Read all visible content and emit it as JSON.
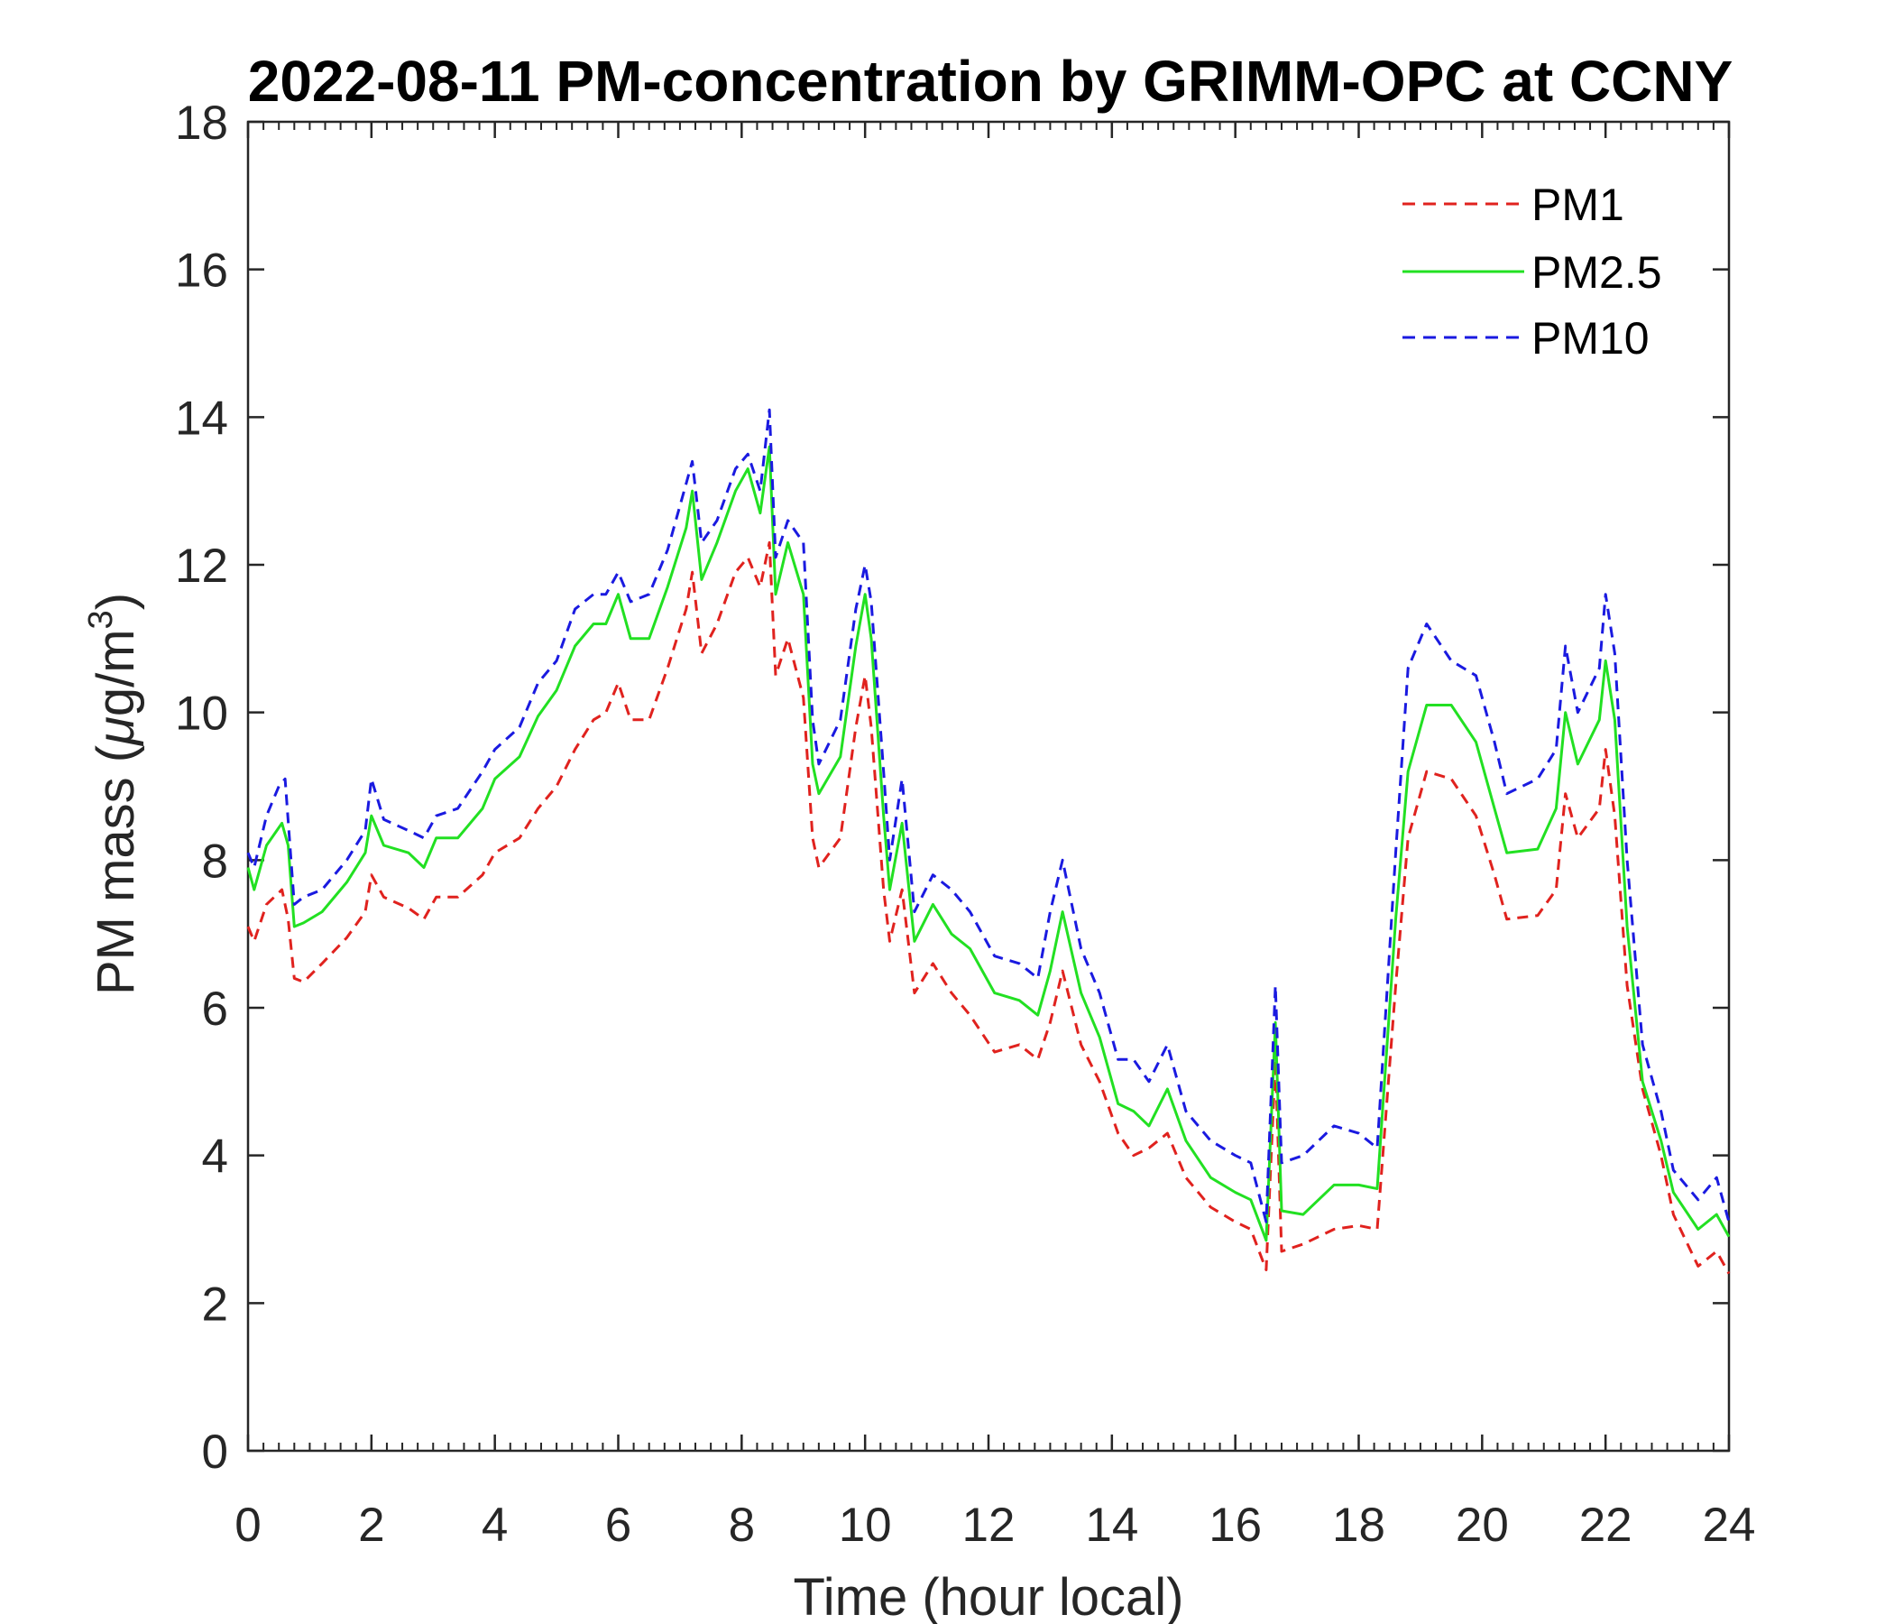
{
  "chart_data": {
    "type": "line",
    "title": "2022-08-11 PM-concentration by GRIMM-OPC at CCNY",
    "xlabel": "Time (hour local)",
    "ylabel_prefix": "PM mass (",
    "ylabel_mu": "μ",
    "ylabel_unit": "g/m",
    "ylabel_sup": "3",
    "ylabel_suffix": ")",
    "xlim": [
      0,
      24
    ],
    "ylim": [
      0,
      18
    ],
    "xticks": [
      0,
      2,
      4,
      6,
      8,
      10,
      12,
      14,
      16,
      18,
      20,
      22,
      24
    ],
    "yticks": [
      0,
      2,
      4,
      6,
      8,
      10,
      12,
      14,
      16,
      18
    ],
    "grid": false,
    "legend_position": "top-right",
    "series": [
      {
        "name": "PM1",
        "color": "#e0221e",
        "dash": "dashed",
        "points": [
          [
            0,
            7.1
          ],
          [
            0.1,
            6.9
          ],
          [
            0.3,
            7.4
          ],
          [
            0.55,
            7.6
          ],
          [
            0.65,
            7.2
          ],
          [
            0.75,
            6.4
          ],
          [
            0.9,
            6.35
          ],
          [
            1.2,
            6.6
          ],
          [
            1.6,
            6.95
          ],
          [
            1.9,
            7.3
          ],
          [
            2.0,
            7.8
          ],
          [
            2.2,
            7.5
          ],
          [
            2.6,
            7.35
          ],
          [
            2.85,
            7.2
          ],
          [
            3.05,
            7.5
          ],
          [
            3.4,
            7.5
          ],
          [
            3.8,
            7.8
          ],
          [
            4.0,
            8.1
          ],
          [
            4.4,
            8.3
          ],
          [
            4.7,
            8.7
          ],
          [
            5.0,
            9.0
          ],
          [
            5.3,
            9.5
          ],
          [
            5.6,
            9.9
          ],
          [
            5.8,
            10.0
          ],
          [
            6.0,
            10.4
          ],
          [
            6.2,
            9.9
          ],
          [
            6.5,
            9.9
          ],
          [
            6.8,
            10.6
          ],
          [
            7.1,
            11.4
          ],
          [
            7.2,
            11.9
          ],
          [
            7.35,
            10.8
          ],
          [
            7.6,
            11.2
          ],
          [
            7.9,
            11.9
          ],
          [
            8.1,
            12.1
          ],
          [
            8.3,
            11.7
          ],
          [
            8.45,
            12.3
          ],
          [
            8.55,
            10.5
          ],
          [
            8.75,
            11.0
          ],
          [
            9.0,
            10.2
          ],
          [
            9.15,
            8.3
          ],
          [
            9.25,
            7.9
          ],
          [
            9.6,
            8.3
          ],
          [
            9.85,
            9.8
          ],
          [
            10.0,
            10.5
          ],
          [
            10.1,
            9.8
          ],
          [
            10.3,
            7.6
          ],
          [
            10.4,
            6.9
          ],
          [
            10.6,
            7.6
          ],
          [
            10.8,
            6.2
          ],
          [
            11.1,
            6.6
          ],
          [
            11.4,
            6.2
          ],
          [
            11.7,
            5.9
          ],
          [
            12.1,
            5.4
          ],
          [
            12.5,
            5.5
          ],
          [
            12.8,
            5.3
          ],
          [
            13.0,
            5.8
          ],
          [
            13.2,
            6.5
          ],
          [
            13.5,
            5.5
          ],
          [
            13.8,
            5.0
          ],
          [
            14.1,
            4.3
          ],
          [
            14.35,
            4.0
          ],
          [
            14.6,
            4.1
          ],
          [
            14.9,
            4.3
          ],
          [
            15.2,
            3.7
          ],
          [
            15.6,
            3.3
          ],
          [
            16.0,
            3.1
          ],
          [
            16.25,
            3.0
          ],
          [
            16.5,
            2.45
          ],
          [
            16.65,
            5.3
          ],
          [
            16.75,
            2.7
          ],
          [
            17.1,
            2.8
          ],
          [
            17.6,
            3.0
          ],
          [
            18.0,
            3.05
          ],
          [
            18.3,
            3.0
          ],
          [
            18.6,
            6.3
          ],
          [
            18.8,
            8.3
          ],
          [
            19.1,
            9.2
          ],
          [
            19.5,
            9.1
          ],
          [
            19.9,
            8.6
          ],
          [
            20.2,
            7.8
          ],
          [
            20.4,
            7.2
          ],
          [
            20.9,
            7.25
          ],
          [
            21.2,
            7.6
          ],
          [
            21.35,
            8.9
          ],
          [
            21.55,
            8.3
          ],
          [
            21.9,
            8.7
          ],
          [
            22.0,
            9.5
          ],
          [
            22.15,
            8.6
          ],
          [
            22.35,
            6.3
          ],
          [
            22.6,
            4.9
          ],
          [
            22.9,
            4.0
          ],
          [
            23.1,
            3.2
          ],
          [
            23.5,
            2.5
          ],
          [
            23.8,
            2.7
          ],
          [
            24.0,
            2.4
          ]
        ]
      },
      {
        "name": "PM2.5",
        "color": "#22e022",
        "dash": "solid",
        "points": [
          [
            0,
            7.9
          ],
          [
            0.1,
            7.6
          ],
          [
            0.3,
            8.2
          ],
          [
            0.55,
            8.5
          ],
          [
            0.65,
            8.2
          ],
          [
            0.75,
            7.1
          ],
          [
            0.9,
            7.15
          ],
          [
            1.2,
            7.3
          ],
          [
            1.6,
            7.7
          ],
          [
            1.9,
            8.1
          ],
          [
            2.0,
            8.6
          ],
          [
            2.2,
            8.2
          ],
          [
            2.6,
            8.1
          ],
          [
            2.85,
            7.9
          ],
          [
            3.05,
            8.3
          ],
          [
            3.4,
            8.3
          ],
          [
            3.8,
            8.7
          ],
          [
            4.0,
            9.1
          ],
          [
            4.4,
            9.4
          ],
          [
            4.7,
            9.95
          ],
          [
            5.0,
            10.3
          ],
          [
            5.3,
            10.9
          ],
          [
            5.6,
            11.2
          ],
          [
            5.8,
            11.2
          ],
          [
            6.0,
            11.6
          ],
          [
            6.2,
            11.0
          ],
          [
            6.5,
            11.0
          ],
          [
            6.8,
            11.7
          ],
          [
            7.1,
            12.5
          ],
          [
            7.2,
            13.0
          ],
          [
            7.35,
            11.8
          ],
          [
            7.6,
            12.3
          ],
          [
            7.9,
            13.0
          ],
          [
            8.1,
            13.3
          ],
          [
            8.3,
            12.7
          ],
          [
            8.45,
            13.6
          ],
          [
            8.55,
            11.6
          ],
          [
            8.75,
            12.3
          ],
          [
            9.0,
            11.6
          ],
          [
            9.15,
            9.3
          ],
          [
            9.25,
            8.9
          ],
          [
            9.6,
            9.4
          ],
          [
            9.85,
            10.9
          ],
          [
            10.0,
            11.6
          ],
          [
            10.1,
            11.0
          ],
          [
            10.3,
            8.6
          ],
          [
            10.4,
            7.6
          ],
          [
            10.6,
            8.5
          ],
          [
            10.8,
            6.9
          ],
          [
            11.1,
            7.4
          ],
          [
            11.4,
            7.0
          ],
          [
            11.7,
            6.8
          ],
          [
            12.1,
            6.2
          ],
          [
            12.5,
            6.1
          ],
          [
            12.8,
            5.9
          ],
          [
            13.0,
            6.5
          ],
          [
            13.2,
            7.3
          ],
          [
            13.5,
            6.2
          ],
          [
            13.8,
            5.6
          ],
          [
            14.1,
            4.7
          ],
          [
            14.35,
            4.6
          ],
          [
            14.6,
            4.4
          ],
          [
            14.9,
            4.9
          ],
          [
            15.2,
            4.2
          ],
          [
            15.6,
            3.7
          ],
          [
            16.0,
            3.5
          ],
          [
            16.25,
            3.4
          ],
          [
            16.5,
            2.85
          ],
          [
            16.65,
            5.8
          ],
          [
            16.75,
            3.25
          ],
          [
            17.1,
            3.2
          ],
          [
            17.6,
            3.6
          ],
          [
            18.0,
            3.6
          ],
          [
            18.3,
            3.55
          ],
          [
            18.6,
            7.2
          ],
          [
            18.8,
            9.2
          ],
          [
            19.1,
            10.1
          ],
          [
            19.5,
            10.1
          ],
          [
            19.9,
            9.6
          ],
          [
            20.2,
            8.7
          ],
          [
            20.4,
            8.1
          ],
          [
            20.9,
            8.15
          ],
          [
            21.2,
            8.7
          ],
          [
            21.35,
            10.0
          ],
          [
            21.55,
            9.3
          ],
          [
            21.9,
            9.9
          ],
          [
            22.0,
            10.7
          ],
          [
            22.15,
            9.9
          ],
          [
            22.35,
            7.1
          ],
          [
            22.6,
            5.0
          ],
          [
            22.9,
            4.2
          ],
          [
            23.1,
            3.5
          ],
          [
            23.5,
            3.0
          ],
          [
            23.8,
            3.2
          ],
          [
            24.0,
            2.9
          ]
        ]
      },
      {
        "name": "PM10",
        "color": "#1a1ae0",
        "dash": "dashed",
        "points": [
          [
            0,
            8.1
          ],
          [
            0.1,
            7.9
          ],
          [
            0.3,
            8.6
          ],
          [
            0.5,
            9.0
          ],
          [
            0.6,
            9.1
          ],
          [
            0.75,
            7.4
          ],
          [
            0.9,
            7.5
          ],
          [
            1.2,
            7.6
          ],
          [
            1.6,
            8.0
          ],
          [
            1.9,
            8.4
          ],
          [
            2.0,
            9.1
          ],
          [
            2.2,
            8.55
          ],
          [
            2.6,
            8.4
          ],
          [
            2.85,
            8.3
          ],
          [
            3.05,
            8.6
          ],
          [
            3.4,
            8.7
          ],
          [
            3.8,
            9.2
          ],
          [
            4.0,
            9.5
          ],
          [
            4.4,
            9.8
          ],
          [
            4.7,
            10.4
          ],
          [
            5.0,
            10.7
          ],
          [
            5.3,
            11.4
          ],
          [
            5.6,
            11.6
          ],
          [
            5.8,
            11.6
          ],
          [
            6.0,
            11.9
          ],
          [
            6.2,
            11.5
          ],
          [
            6.5,
            11.6
          ],
          [
            6.8,
            12.2
          ],
          [
            7.1,
            13.1
          ],
          [
            7.2,
            13.4
          ],
          [
            7.35,
            12.3
          ],
          [
            7.6,
            12.6
          ],
          [
            7.9,
            13.3
          ],
          [
            8.1,
            13.5
          ],
          [
            8.3,
            13.0
          ],
          [
            8.45,
            14.1
          ],
          [
            8.55,
            12.1
          ],
          [
            8.75,
            12.6
          ],
          [
            9.0,
            12.3
          ],
          [
            9.15,
            9.9
          ],
          [
            9.25,
            9.3
          ],
          [
            9.6,
            9.9
          ],
          [
            9.85,
            11.4
          ],
          [
            10.0,
            12.0
          ],
          [
            10.1,
            11.5
          ],
          [
            10.3,
            9.2
          ],
          [
            10.4,
            8.0
          ],
          [
            10.6,
            9.1
          ],
          [
            10.8,
            7.3
          ],
          [
            11.1,
            7.8
          ],
          [
            11.4,
            7.6
          ],
          [
            11.7,
            7.3
          ],
          [
            12.1,
            6.7
          ],
          [
            12.5,
            6.6
          ],
          [
            12.8,
            6.4
          ],
          [
            13.0,
            7.3
          ],
          [
            13.2,
            8.0
          ],
          [
            13.5,
            6.8
          ],
          [
            13.8,
            6.2
          ],
          [
            14.1,
            5.3
          ],
          [
            14.35,
            5.3
          ],
          [
            14.6,
            5.0
          ],
          [
            14.9,
            5.5
          ],
          [
            15.2,
            4.6
          ],
          [
            15.6,
            4.2
          ],
          [
            16.0,
            4.0
          ],
          [
            16.25,
            3.9
          ],
          [
            16.5,
            3.1
          ],
          [
            16.65,
            6.3
          ],
          [
            16.75,
            3.9
          ],
          [
            17.1,
            4.0
          ],
          [
            17.6,
            4.4
          ],
          [
            18.0,
            4.3
          ],
          [
            18.3,
            4.1
          ],
          [
            18.6,
            8.1
          ],
          [
            18.8,
            10.6
          ],
          [
            19.1,
            11.2
          ],
          [
            19.5,
            10.7
          ],
          [
            19.9,
            10.5
          ],
          [
            20.2,
            9.6
          ],
          [
            20.4,
            8.9
          ],
          [
            20.9,
            9.1
          ],
          [
            21.2,
            9.5
          ],
          [
            21.35,
            10.9
          ],
          [
            21.55,
            10.0
          ],
          [
            21.9,
            10.6
          ],
          [
            22.0,
            11.6
          ],
          [
            22.15,
            10.8
          ],
          [
            22.35,
            8.0
          ],
          [
            22.6,
            5.5
          ],
          [
            22.9,
            4.6
          ],
          [
            23.1,
            3.8
          ],
          [
            23.5,
            3.4
          ],
          [
            23.8,
            3.7
          ],
          [
            24.0,
            3.1
          ]
        ]
      }
    ]
  }
}
